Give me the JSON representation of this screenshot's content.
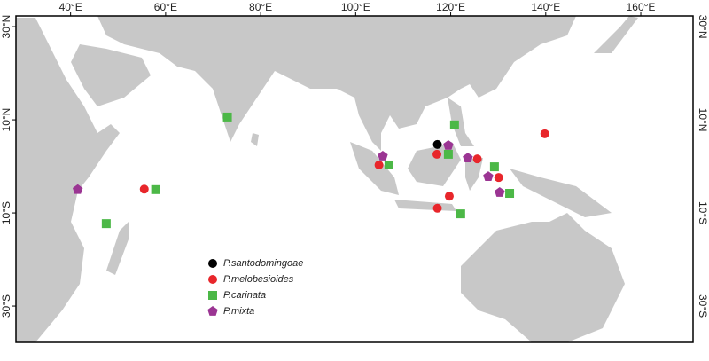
{
  "chart_data": {
    "type": "scatter",
    "xlim": [
      28.5,
      171
    ],
    "ylim": [
      -37.8,
      32.3
    ],
    "xticks": [
      {
        "value": 40,
        "label": "40°E"
      },
      {
        "value": 60,
        "label": "60°E"
      },
      {
        "value": 80,
        "label": "80°E"
      },
      {
        "value": 100,
        "label": "100°E"
      },
      {
        "value": 120,
        "label": "120°E"
      },
      {
        "value": 140,
        "label": "140°E"
      },
      {
        "value": 160,
        "label": "160°E"
      }
    ],
    "yticks": [
      {
        "value": 30,
        "label": "30°N"
      },
      {
        "value": 10,
        "label": "10°N"
      },
      {
        "value": -10,
        "label": "10°S"
      },
      {
        "value": -30,
        "label": "30°S"
      }
    ],
    "series": [
      {
        "name": "P.santodomingoae",
        "color": "#000000",
        "marker": "circle",
        "x": [
          117.2
        ],
        "y": [
          4.7
        ]
      },
      {
        "name": "P.melobesioides",
        "color": "#e8262b",
        "marker": "circle",
        "x": [
          55.5,
          104.9,
          117.1,
          125.6,
          139.8,
          130.1,
          119.7,
          117.2
        ],
        "y": [
          -4.9,
          0.3,
          2.6,
          1.6,
          7.0,
          -2.4,
          -6.4,
          -9.0
        ]
      },
      {
        "name": "P.carinata",
        "color": "#4cb847",
        "marker": "square",
        "x": [
          73.0,
          57.9,
          47.5,
          107.0,
          120.8,
          119.5,
          129.2,
          132.4,
          122.1
        ],
        "y": [
          10.6,
          -5.0,
          -12.3,
          0.3,
          8.9,
          2.6,
          -0.1,
          -5.8,
          -10.2
        ]
      },
      {
        "name": "P.mixta",
        "color": "#9b3593",
        "marker": "pentagon",
        "x": [
          41.5,
          105.7,
          119.5,
          123.6,
          127.9,
          130.3
        ],
        "y": [
          -5.0,
          2.2,
          4.5,
          1.8,
          -2.2,
          -5.6
        ]
      }
    ]
  }
}
